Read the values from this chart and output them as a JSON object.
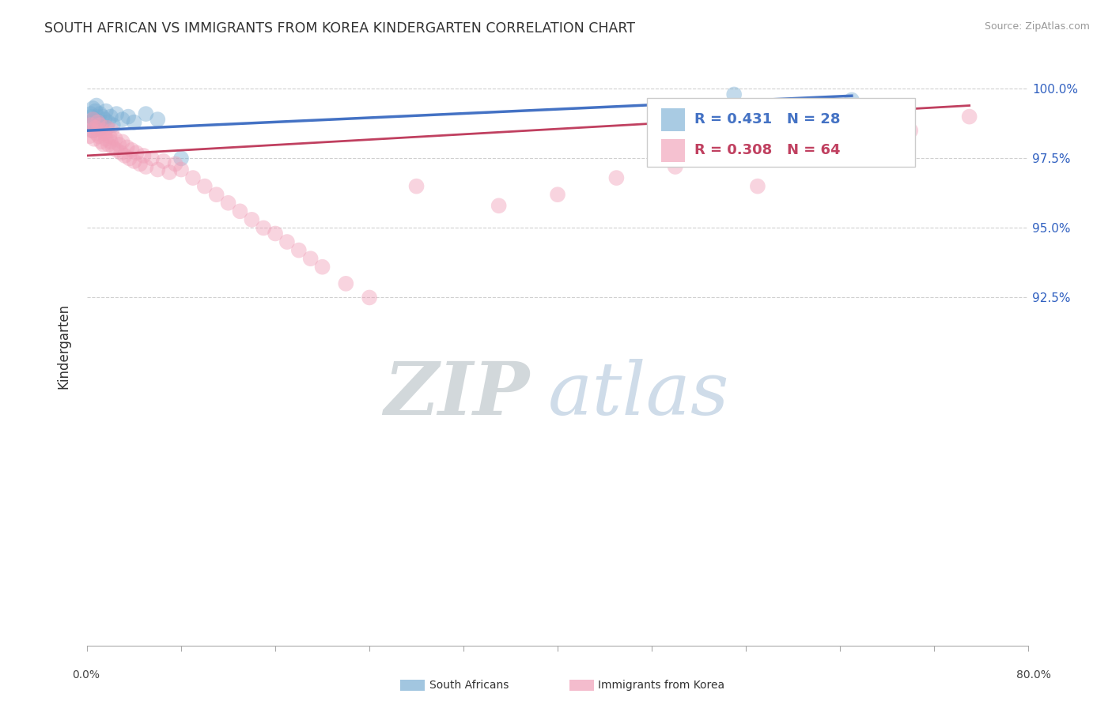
{
  "title": "SOUTH AFRICAN VS IMMIGRANTS FROM KOREA KINDERGARTEN CORRELATION CHART",
  "source": "Source: ZipAtlas.com",
  "ylabel": "Kindergarten",
  "ytick_values": [
    100.0,
    97.5,
    95.0,
    92.5
  ],
  "legend_entries": [
    {
      "label": "South Africans",
      "R": 0.431,
      "N": 28
    },
    {
      "label": "Immigrants from Korea",
      "R": 0.308,
      "N": 64
    }
  ],
  "blue_scatter_x": [
    0.2,
    0.3,
    0.4,
    0.5,
    0.5,
    0.6,
    0.7,
    0.8,
    0.8,
    0.9,
    1.0,
    1.1,
    1.2,
    1.3,
    1.5,
    1.6,
    1.8,
    2.0,
    2.2,
    2.5,
    3.0,
    3.5,
    4.0,
    5.0,
    6.0,
    8.0,
    55.0,
    65.0
  ],
  "blue_scatter_y": [
    98.8,
    99.1,
    99.0,
    98.5,
    99.3,
    98.9,
    99.2,
    98.7,
    99.4,
    99.0,
    98.8,
    99.1,
    98.6,
    99.0,
    98.9,
    99.2,
    98.8,
    99.0,
    98.7,
    99.1,
    98.9,
    99.0,
    98.8,
    99.1,
    98.9,
    97.5,
    99.8,
    99.6
  ],
  "pink_scatter_x": [
    0.2,
    0.3,
    0.4,
    0.5,
    0.6,
    0.7,
    0.8,
    0.9,
    1.0,
    1.1,
    1.2,
    1.3,
    1.4,
    1.5,
    1.6,
    1.7,
    1.8,
    1.9,
    2.0,
    2.1,
    2.2,
    2.4,
    2.5,
    2.7,
    2.9,
    3.0,
    3.2,
    3.4,
    3.6,
    3.8,
    4.0,
    4.2,
    4.5,
    4.8,
    5.0,
    5.5,
    6.0,
    6.5,
    7.0,
    7.5,
    8.0,
    9.0,
    10.0,
    11.0,
    12.0,
    13.0,
    14.0,
    15.0,
    16.0,
    17.0,
    18.0,
    19.0,
    20.0,
    22.0,
    24.0,
    28.0,
    35.0,
    40.0,
    45.0,
    50.0,
    57.0,
    60.0,
    70.0,
    75.0
  ],
  "pink_scatter_y": [
    98.3,
    98.7,
    98.5,
    98.9,
    98.2,
    98.6,
    98.4,
    98.8,
    98.3,
    98.7,
    98.1,
    98.5,
    98.0,
    98.4,
    98.2,
    98.6,
    98.0,
    98.3,
    98.1,
    98.5,
    97.9,
    98.2,
    97.8,
    98.0,
    97.7,
    98.1,
    97.6,
    97.9,
    97.5,
    97.8,
    97.4,
    97.7,
    97.3,
    97.6,
    97.2,
    97.5,
    97.1,
    97.4,
    97.0,
    97.3,
    97.1,
    96.8,
    96.5,
    96.2,
    95.9,
    95.6,
    95.3,
    95.0,
    94.8,
    94.5,
    94.2,
    93.9,
    93.6,
    93.0,
    92.5,
    96.5,
    95.8,
    96.2,
    96.8,
    97.2,
    96.5,
    97.8,
    98.5,
    99.0
  ],
  "blue_line_color": "#4472c4",
  "pink_line_color": "#c04060",
  "blue_dot_color": "#7bafd4",
  "pink_dot_color": "#f0a0b8",
  "watermark_zip": "ZIP",
  "watermark_atlas": "atlas",
  "xlim": [
    0,
    80
  ],
  "ylim": [
    80,
    101.5
  ],
  "ytick_top": 100.0,
  "grid_color": "#d0d0d0",
  "background_color": "#ffffff"
}
